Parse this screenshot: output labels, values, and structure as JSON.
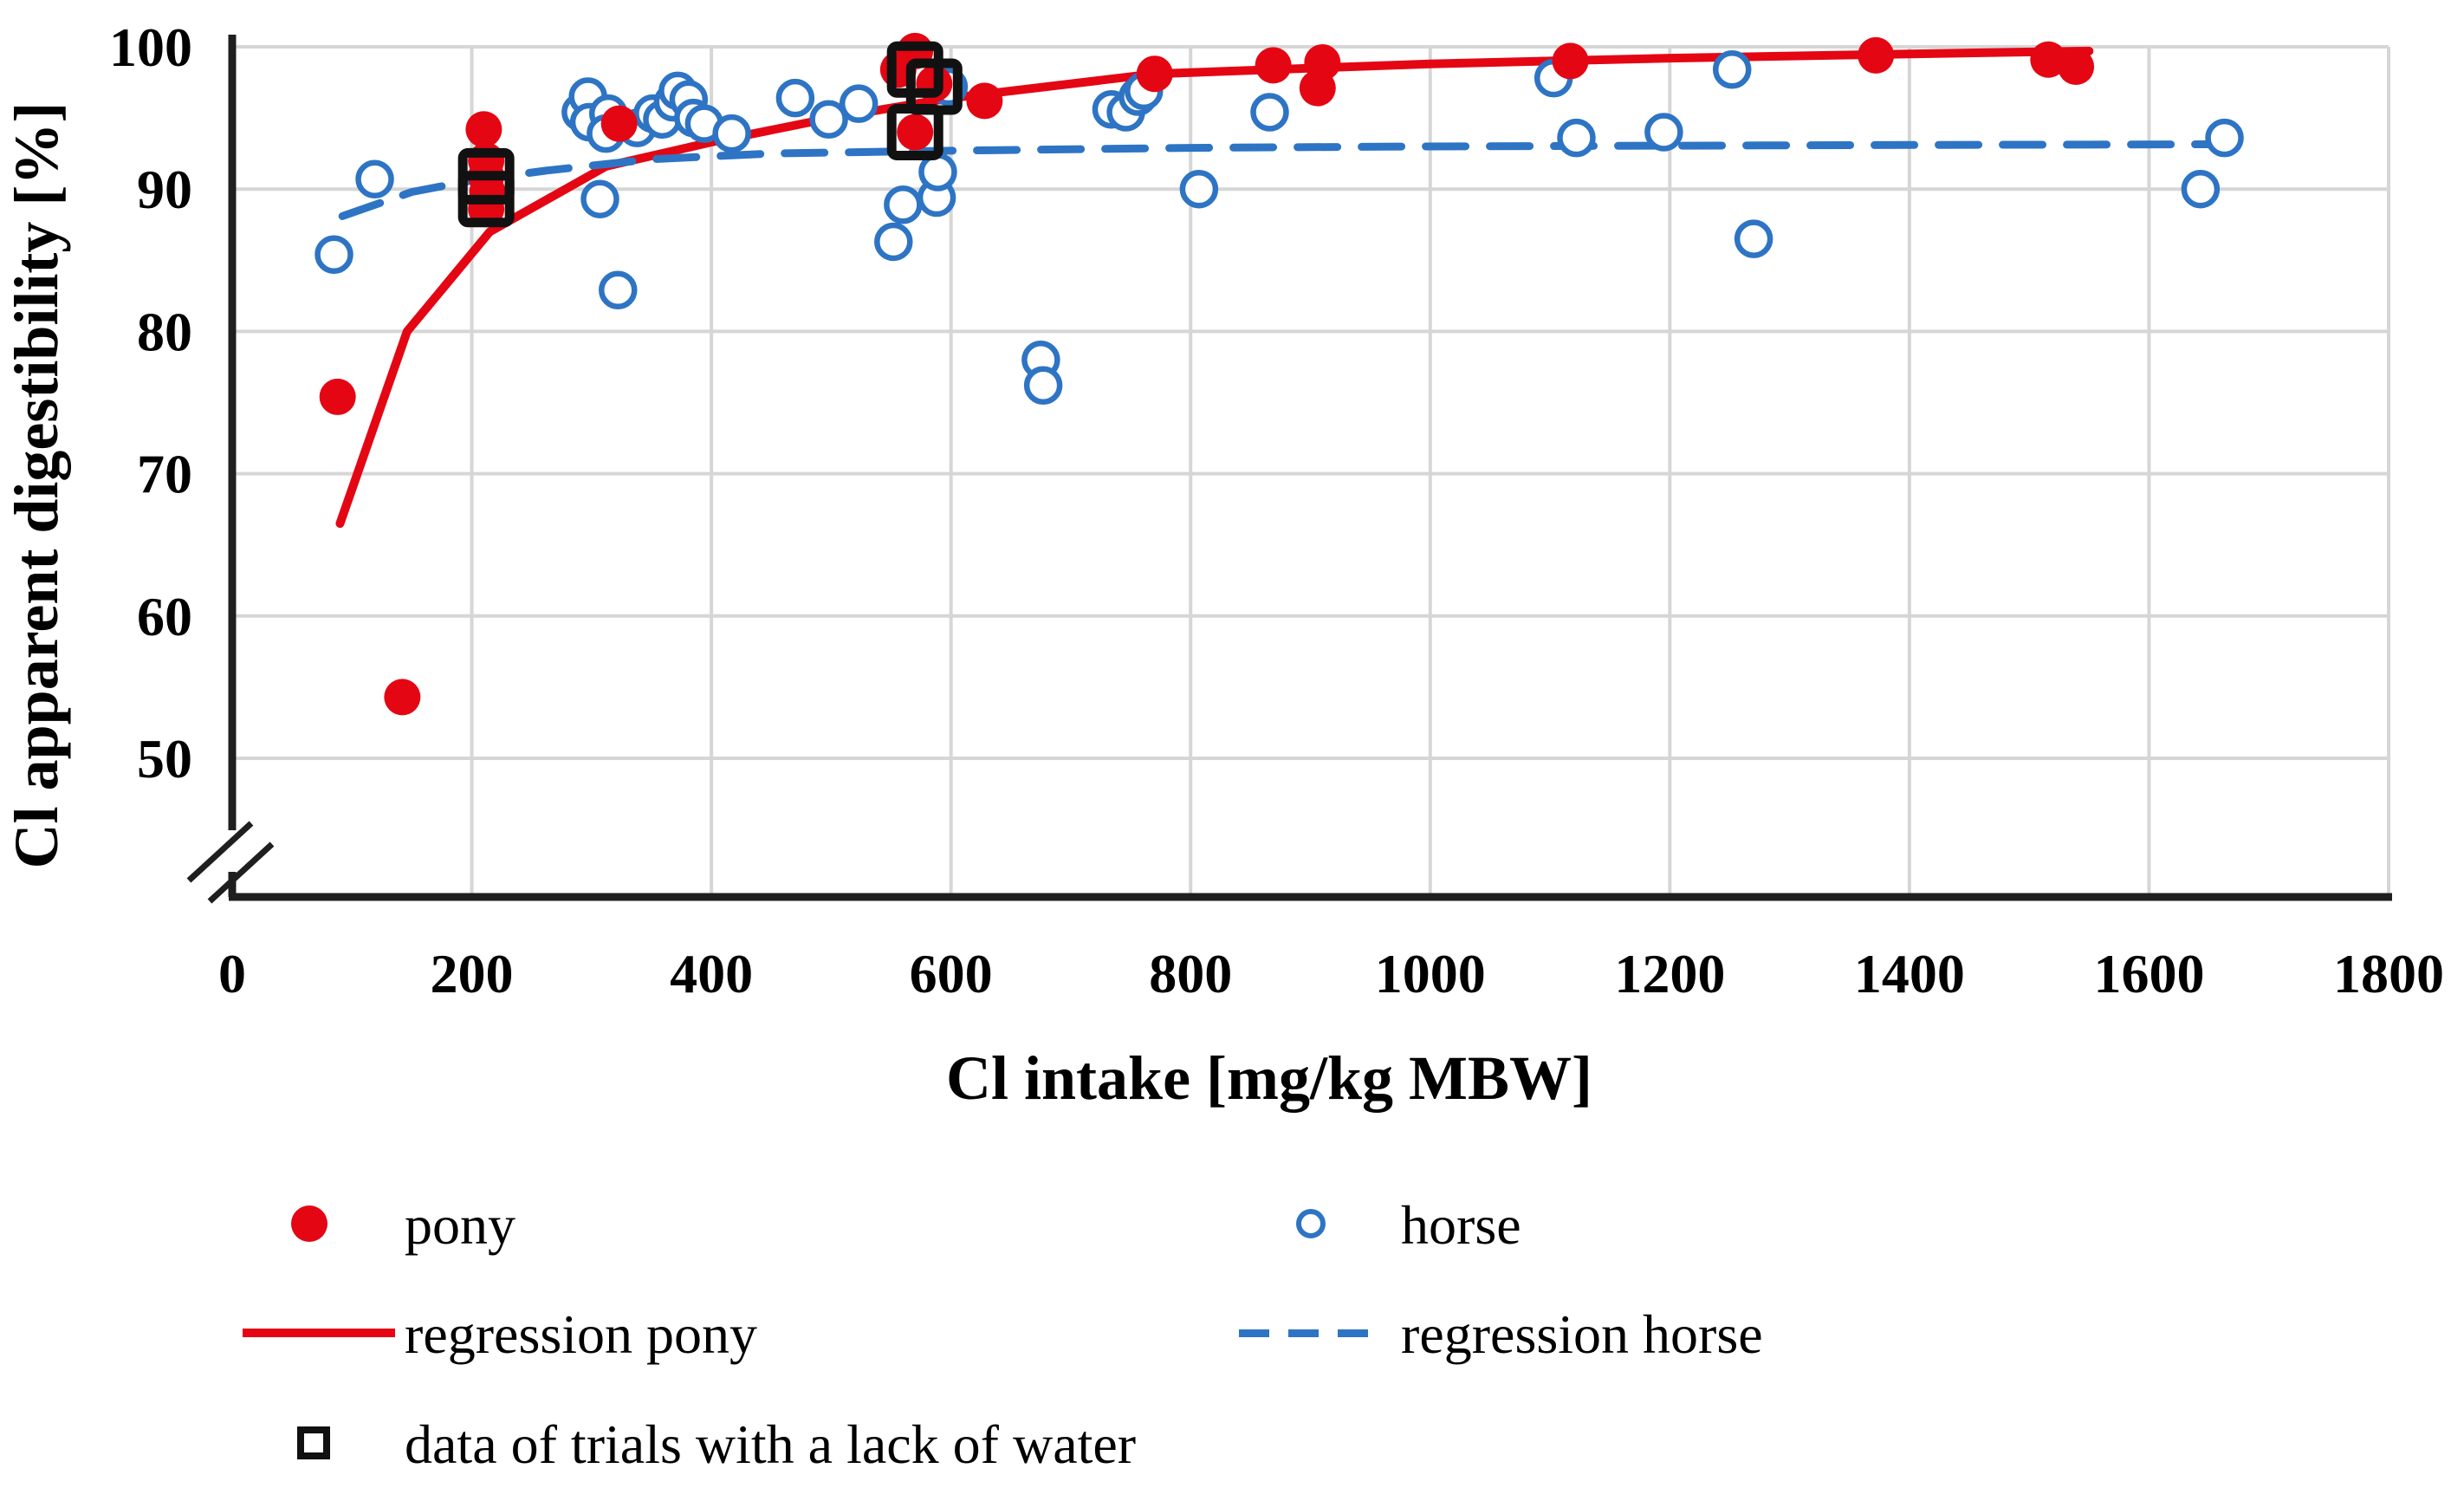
{
  "chart_data": {
    "type": "scatter",
    "title": "",
    "xlabel": "Cl intake [mg/kg MBW]",
    "ylabel": "Cl apparent digestibility [%]",
    "xlim": [
      0,
      1800
    ],
    "ylim_displayed": [
      50,
      100
    ],
    "y_axis_break_below": 50,
    "grid": true,
    "x_ticks": [
      0,
      200,
      400,
      600,
      800,
      1000,
      1200,
      1400,
      1600,
      1800
    ],
    "y_ticks": [
      50,
      60,
      70,
      80,
      90,
      100
    ],
    "colors": {
      "pony": "#e40613",
      "horse": "#2e74c4",
      "square": "#111111",
      "grid": "#d6d6d6",
      "axis": "#1f1f1f"
    },
    "series": [
      {
        "name": "pony",
        "kind": "scatter",
        "marker": "filled-circle",
        "color": "#e40613",
        "points": [
          [
            88,
            75.4
          ],
          [
            142,
            54.3
          ],
          [
            210,
            94.2
          ],
          [
            212,
            92.0
          ],
          [
            212,
            90.9
          ],
          [
            213,
            89.8
          ],
          [
            212,
            88.6
          ],
          [
            323,
            94.6
          ],
          [
            556,
            98.4
          ],
          [
            570,
            99.7
          ],
          [
            586,
            97.4
          ],
          [
            570,
            94.0
          ],
          [
            628,
            96.2
          ],
          [
            770,
            98.1
          ],
          [
            869,
            98.7
          ],
          [
            910,
            98.9
          ],
          [
            906,
            97.1
          ],
          [
            1117,
            99.0
          ],
          [
            1372,
            99.4
          ],
          [
            1516,
            99.1
          ],
          [
            1539,
            98.6
          ]
        ]
      },
      {
        "name": "horse",
        "kind": "scatter",
        "marker": "open-circle",
        "color": "#2e74c4",
        "points": [
          [
            85,
            85.4
          ],
          [
            119,
            90.7
          ],
          [
            291,
            95.4
          ],
          [
            297,
            96.5
          ],
          [
            298,
            94.7
          ],
          [
            314,
            95.3
          ],
          [
            312,
            93.9
          ],
          [
            307,
            89.3
          ],
          [
            322,
            82.9
          ],
          [
            338,
            94.3
          ],
          [
            351,
            95.3
          ],
          [
            359,
            94.9
          ],
          [
            368,
            96.1
          ],
          [
            372,
            96.9
          ],
          [
            381,
            96.3
          ],
          [
            385,
            95.0
          ],
          [
            394,
            94.6
          ],
          [
            417,
            93.9
          ],
          [
            470,
            96.4
          ],
          [
            498,
            94.9
          ],
          [
            523,
            96.0
          ],
          [
            552,
            86.3
          ],
          [
            560,
            88.9
          ],
          [
            588,
            89.4
          ],
          [
            589,
            91.2
          ],
          [
            598,
            97.2
          ],
          [
            675,
            78.0
          ],
          [
            677,
            76.2
          ],
          [
            734,
            95.6
          ],
          [
            746,
            95.4
          ],
          [
            756,
            96.5
          ],
          [
            761,
            96.9
          ],
          [
            807,
            90.0
          ],
          [
            866,
            95.4
          ],
          [
            1103,
            97.8
          ],
          [
            1122,
            93.6
          ],
          [
            1195,
            94.0
          ],
          [
            1252,
            98.4
          ],
          [
            1270,
            86.5
          ],
          [
            1643,
            90.0
          ],
          [
            1663,
            93.6
          ]
        ]
      },
      {
        "name": "regression pony",
        "kind": "line",
        "style": "solid",
        "color": "#e40613",
        "points": [
          [
            90,
            66.5
          ],
          [
            146,
            80.0
          ],
          [
            215,
            87.0
          ],
          [
            312,
            91.6
          ],
          [
            400,
            93.3
          ],
          [
            500,
            95.0
          ],
          [
            600,
            96.4
          ],
          [
            770,
            98.1
          ],
          [
            1000,
            98.8
          ],
          [
            1200,
            99.2
          ],
          [
            1400,
            99.5
          ],
          [
            1550,
            99.7
          ]
        ]
      },
      {
        "name": "regression horse",
        "kind": "line",
        "style": "dashed",
        "color": "#2e74c4",
        "points": [
          [
            92,
            88.1
          ],
          [
            150,
            89.8
          ],
          [
            200,
            90.6
          ],
          [
            262,
            91.3
          ],
          [
            350,
            92.1
          ],
          [
            450,
            92.5
          ],
          [
            600,
            92.7
          ],
          [
            800,
            92.9
          ],
          [
            1000,
            93.0
          ],
          [
            1200,
            93.05
          ],
          [
            1400,
            93.1
          ],
          [
            1660,
            93.15
          ]
        ]
      },
      {
        "name": "data of trials with a lack of water",
        "kind": "scatter",
        "marker": "open-square",
        "color": "#111111",
        "points": [
          [
            212,
            90.9
          ],
          [
            212,
            89.3
          ],
          [
            570,
            98.4
          ],
          [
            586,
            97.2
          ],
          [
            570,
            94.0
          ]
        ]
      }
    ],
    "legend": {
      "position": "below-chart",
      "pony": "pony",
      "horse": "horse",
      "regression_pony": "regression pony",
      "regression_horse": "regression horse",
      "lack_of_water": "data of trials with a lack of water"
    }
  }
}
